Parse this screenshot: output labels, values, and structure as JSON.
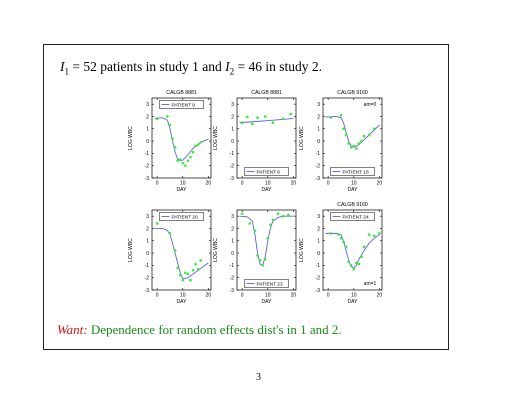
{
  "slide": {
    "headline": {
      "i1_var": "I",
      "i1_sub": "1",
      "i1_text": " = 52 patients in study 1 and ",
      "i2_var": "I",
      "i2_sub": "2",
      "i2_text": " = 46 in study 2."
    },
    "want": {
      "label": "Want:",
      "text": "Dependence for random effects dist's in 1 and 2."
    },
    "page_number": "3"
  },
  "colors": {
    "fit_line": "#5b62d6",
    "points": "#3ee63e",
    "axes": "#000000"
  },
  "chart_data": [
    {
      "type": "scatter",
      "title": "CALGB 8881",
      "legend": "PATIENT 9",
      "legend_position": "top",
      "annotation": "",
      "xlabel": "DAY",
      "ylabel": "LOG WBC",
      "xlim": [
        -2,
        21
      ],
      "ylim": [
        -3,
        3.5
      ],
      "xticks": [
        "0",
        "10",
        "20"
      ],
      "yticks": [
        "-3",
        "-2",
        "-1",
        "0",
        "1",
        "2",
        "3"
      ],
      "curve": {
        "x": [
          -1,
          2,
          4,
          5,
          6,
          7,
          8,
          9,
          10,
          11,
          12,
          14,
          16,
          18,
          20
        ],
        "y": [
          1.85,
          1.9,
          1.7,
          1.0,
          0.0,
          -0.9,
          -1.45,
          -1.6,
          -1.55,
          -1.35,
          -1.1,
          -0.6,
          -0.25,
          0.0,
          0.15
        ]
      },
      "points": {
        "x": [
          0,
          4,
          5,
          6,
          7,
          8,
          9,
          10,
          11,
          12,
          13,
          14,
          15,
          16,
          17
        ],
        "y": [
          1.8,
          2.0,
          1.3,
          0.2,
          -0.5,
          -1.6,
          -1.5,
          -1.8,
          -2.0,
          -1.6,
          -1.3,
          -0.9,
          -0.4,
          -0.3,
          -0.1
        ]
      }
    },
    {
      "type": "scatter",
      "title": "CALGB 8881",
      "legend": "PATIENT 6",
      "legend_position": "bottom",
      "annotation": "",
      "xlabel": "DAY",
      "ylabel": "LOG WBC",
      "xlim": [
        -2,
        21
      ],
      "ylim": [
        -3,
        3.5
      ],
      "xticks": [
        "0",
        "10",
        "20"
      ],
      "yticks": [
        "-3",
        "-2",
        "-1",
        "0",
        "1",
        "2",
        "3"
      ],
      "curve": {
        "x": [
          -1,
          3,
          6,
          9,
          12,
          15,
          18,
          20
        ],
        "y": [
          1.5,
          1.55,
          1.6,
          1.65,
          1.7,
          1.75,
          1.8,
          1.85
        ]
      },
      "points": {
        "x": [
          0,
          2,
          4,
          6,
          9,
          12,
          16,
          19
        ],
        "y": [
          1.5,
          1.95,
          1.4,
          1.9,
          2.0,
          1.5,
          1.8,
          2.2
        ]
      }
    },
    {
      "type": "scatter",
      "title": "CALGB 9160",
      "legend": "PATIENT 18",
      "legend_position": "bottom",
      "annotation": "am=0",
      "xlabel": "DAY",
      "ylabel": "LOG WBC",
      "xlim": [
        -2,
        21
      ],
      "ylim": [
        -3,
        3.5
      ],
      "xticks": [
        "0",
        "10",
        "20"
      ],
      "yticks": [
        "-3",
        "-2",
        "-1",
        "0",
        "1",
        "2",
        "3"
      ],
      "curve": {
        "x": [
          -1,
          3,
          5,
          6,
          7,
          8,
          9,
          10,
          12,
          14,
          16,
          18,
          20
        ],
        "y": [
          1.95,
          2.0,
          1.9,
          1.5,
          0.7,
          0.0,
          -0.4,
          -0.5,
          -0.3,
          0.1,
          0.5,
          0.9,
          1.3
        ]
      },
      "points": {
        "x": [
          1,
          5,
          6,
          7,
          8,
          9,
          10,
          11,
          12,
          13,
          14,
          16,
          18
        ],
        "y": [
          1.9,
          2.1,
          1.0,
          0.5,
          -0.2,
          -0.5,
          -0.4,
          -0.6,
          -0.2,
          0.0,
          0.4,
          0.5,
          1.0
        ]
      }
    },
    {
      "type": "scatter",
      "title": "",
      "legend": "PATIENT 20",
      "legend_position": "top",
      "annotation": "",
      "xlabel": "DAY",
      "ylabel": "LOG WBC",
      "xlim": [
        -2,
        21
      ],
      "ylim": [
        -3,
        3.5
      ],
      "xticks": [
        "0",
        "10",
        "20"
      ],
      "yticks": [
        "-3",
        "-2",
        "-1",
        "0",
        "1",
        "2",
        "3"
      ],
      "curve": {
        "x": [
          -1,
          2,
          4,
          5,
          6,
          7,
          8,
          9,
          10,
          12,
          14,
          16,
          18,
          20
        ],
        "y": [
          2.0,
          2.0,
          1.85,
          1.5,
          0.8,
          0.0,
          -0.8,
          -1.6,
          -2.1,
          -2.0,
          -1.7,
          -1.4,
          -1.1,
          -0.8
        ]
      },
      "points": {
        "x": [
          0,
          5,
          7,
          8,
          9,
          10,
          11,
          12,
          13,
          14,
          15,
          16,
          17
        ],
        "y": [
          2.4,
          1.6,
          0.2,
          -1.2,
          -1.8,
          -2.2,
          -1.6,
          -1.7,
          -2.2,
          -1.4,
          -0.9,
          -1.3,
          -0.6
        ]
      }
    },
    {
      "type": "scatter",
      "title": "",
      "legend": "PATIENT 23",
      "legend_position": "bottom",
      "annotation": "",
      "xlabel": "DAY",
      "ylabel": "LOG WBC",
      "xlim": [
        -2,
        21
      ],
      "ylim": [
        -3,
        3.5
      ],
      "xticks": [
        "0",
        "10",
        "20"
      ],
      "yticks": [
        "-3",
        "-2",
        "-1",
        "0",
        "1",
        "2",
        "3"
      ],
      "curve": {
        "x": [
          -1,
          2,
          4,
          5,
          6,
          7,
          8,
          9,
          10,
          11,
          12,
          14,
          16,
          20
        ],
        "y": [
          3.0,
          2.95,
          2.6,
          1.5,
          0.0,
          -0.9,
          -1.0,
          -0.3,
          1.0,
          2.0,
          2.6,
          2.9,
          3.0,
          3.0
        ]
      },
      "points": {
        "x": [
          0,
          3,
          5,
          6,
          7,
          8,
          9,
          10,
          11,
          12,
          14,
          16,
          18
        ],
        "y": [
          3.2,
          2.4,
          1.8,
          -0.2,
          -0.6,
          -1.0,
          -0.5,
          1.2,
          2.3,
          2.7,
          3.2,
          3.0,
          3.1
        ]
      }
    },
    {
      "type": "scatter",
      "title": "CALGB 9160",
      "legend": "PATIENT 24",
      "legend_position": "top",
      "annotation": "am=1",
      "xlabel": "DAY",
      "ylabel": "LOG WBC",
      "xlim": [
        -2,
        21
      ],
      "ylim": [
        -3,
        3.5
      ],
      "xticks": [
        "0",
        "10",
        "20"
      ],
      "yticks": [
        "-3",
        "-2",
        "-1",
        "0",
        "1",
        "2",
        "3"
      ],
      "curve": {
        "x": [
          -1,
          3,
          5,
          6,
          7,
          8,
          9,
          10,
          11,
          12,
          14,
          16,
          18,
          20
        ],
        "y": [
          1.6,
          1.6,
          1.5,
          1.0,
          0.2,
          -0.6,
          -1.1,
          -1.2,
          -1.0,
          -0.5,
          0.2,
          0.8,
          1.2,
          1.5
        ]
      },
      "points": {
        "x": [
          1,
          4,
          5,
          6,
          7,
          8,
          9,
          10,
          11,
          12,
          13,
          14,
          16,
          18,
          20
        ],
        "y": [
          1.6,
          1.5,
          1.2,
          0.9,
          0.5,
          -0.7,
          -1.0,
          -1.3,
          -0.8,
          -0.9,
          -0.3,
          0.5,
          1.5,
          1.4,
          1.6
        ]
      }
    }
  ]
}
